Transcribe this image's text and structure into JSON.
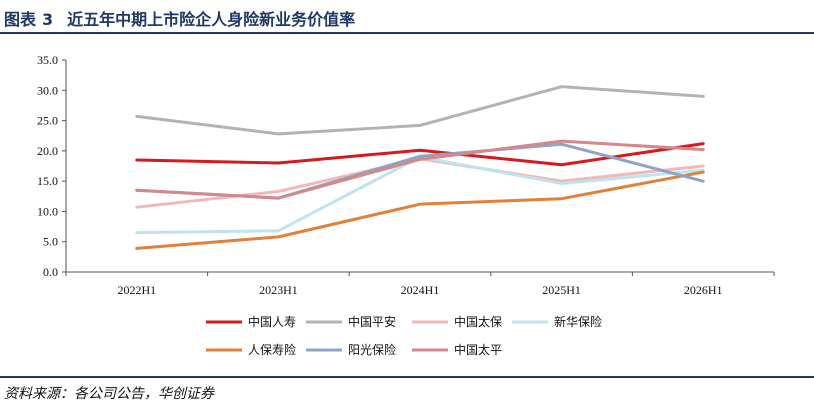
{
  "header": {
    "prefix": "图表",
    "number": "3",
    "title": "近五年中期上市险企人身险新业务价值率"
  },
  "source": "资料来源：各公司公告，华创证券",
  "chart_data": {
    "type": "line",
    "title": "",
    "xlabel": "",
    "ylabel": "",
    "categories": [
      "2022H1",
      "2023H1",
      "2024H1",
      "2025H1",
      "2026H1"
    ],
    "ylim": [
      0,
      35
    ],
    "yticks": [
      "0.0",
      "5.0",
      "10.0",
      "15.0",
      "20.0",
      "25.0",
      "30.0",
      "35.0"
    ],
    "grid": false,
    "legend_position": "bottom",
    "series": [
      {
        "name": "中国人寿",
        "color": "#d7191c",
        "values": [
          18.5,
          18.0,
          20.1,
          17.7,
          21.2
        ]
      },
      {
        "name": "中国平安",
        "color": "#b3b3b3",
        "values": [
          25.7,
          22.8,
          24.2,
          30.6,
          29.0
        ]
      },
      {
        "name": "中国太保",
        "color": "#f2b8b8",
        "values": [
          10.7,
          13.3,
          18.7,
          15.0,
          17.5
        ]
      },
      {
        "name": "新华保险",
        "color": "#bfe3ee",
        "values": [
          6.5,
          6.8,
          19.0,
          14.6,
          16.8
        ]
      },
      {
        "name": "人保寿险",
        "color": "#e0803a",
        "values": [
          3.9,
          5.8,
          11.2,
          12.1,
          16.5
        ]
      },
      {
        "name": "阳光保险",
        "color": "#8ea3c8",
        "values": [
          13.5,
          12.2,
          19.1,
          21.1,
          15.0
        ]
      },
      {
        "name": "中国太平",
        "color": "#d4888a",
        "values": [
          13.5,
          12.2,
          18.6,
          21.6,
          20.2
        ]
      }
    ]
  }
}
